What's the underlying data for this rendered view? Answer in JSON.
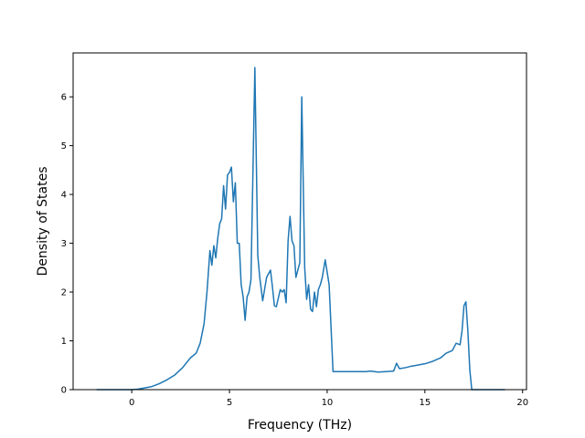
{
  "chart_data": {
    "type": "line",
    "title": "",
    "xlabel": "Frequency (THz)",
    "ylabel": "Density of States",
    "xlim": [
      -3,
      20.2
    ],
    "ylim": [
      0,
      6.9
    ],
    "xticks": [
      0,
      5,
      10,
      15,
      20
    ],
    "yticks": [
      0,
      1,
      2,
      3,
      4,
      5,
      6
    ],
    "grid": false,
    "series": [
      {
        "color": "#1f77b4",
        "x": [
          -1.8,
          -1.0,
          -0.5,
          0.0,
          0.3,
          0.6,
          1.0,
          1.4,
          1.8,
          2.2,
          2.6,
          3.0,
          3.3,
          3.5,
          3.7,
          3.85,
          4.0,
          4.1,
          4.2,
          4.3,
          4.4,
          4.5,
          4.6,
          4.7,
          4.8,
          4.9,
          5.0,
          5.1,
          5.2,
          5.3,
          5.4,
          5.5,
          5.6,
          5.7,
          5.8,
          5.9,
          6.0,
          6.1,
          6.3,
          6.45,
          6.55,
          6.7,
          6.9,
          7.1,
          7.2,
          7.3,
          7.4,
          7.6,
          7.7,
          7.8,
          7.9,
          8.0,
          8.1,
          8.2,
          8.3,
          8.4,
          8.5,
          8.6,
          8.7,
          8.85,
          8.95,
          9.05,
          9.15,
          9.25,
          9.35,
          9.45,
          9.55,
          9.65,
          9.75,
          9.9,
          10.1,
          10.3,
          10.45,
          10.55,
          11.0,
          11.5,
          12.0,
          12.2,
          12.6,
          13.0,
          13.4,
          13.55,
          13.7,
          14.0,
          14.3,
          14.6,
          15.0,
          15.4,
          15.8,
          16.1,
          16.4,
          16.6,
          16.8,
          16.9,
          17.0,
          17.1,
          17.2,
          17.3,
          17.4,
          17.45,
          17.6,
          18.0,
          19.1
        ],
        "y": [
          0.0,
          0.0,
          0.0,
          0.0,
          0.01,
          0.03,
          0.06,
          0.12,
          0.2,
          0.3,
          0.45,
          0.65,
          0.75,
          0.95,
          1.35,
          2.0,
          2.85,
          2.55,
          2.95,
          2.7,
          3.1,
          3.4,
          3.5,
          4.18,
          3.7,
          4.4,
          4.45,
          4.56,
          3.85,
          4.24,
          3.0,
          3.0,
          2.15,
          1.9,
          1.42,
          1.9,
          2.0,
          2.25,
          6.6,
          2.75,
          2.3,
          1.82,
          2.3,
          2.45,
          2.1,
          1.72,
          1.7,
          2.05,
          2.0,
          2.05,
          1.78,
          3.05,
          3.55,
          3.05,
          2.95,
          2.3,
          2.45,
          2.6,
          6.0,
          2.5,
          1.85,
          2.15,
          1.65,
          1.6,
          2.0,
          1.7,
          2.05,
          2.15,
          2.3,
          2.66,
          2.15,
          0.37,
          0.37,
          0.37,
          0.37,
          0.37,
          0.37,
          0.38,
          0.36,
          0.37,
          0.38,
          0.54,
          0.43,
          0.45,
          0.48,
          0.5,
          0.53,
          0.58,
          0.65,
          0.75,
          0.8,
          0.95,
          0.92,
          1.2,
          1.72,
          1.8,
          1.2,
          0.4,
          0.0,
          0.0,
          0.0,
          0.0,
          0.0
        ]
      }
    ]
  }
}
